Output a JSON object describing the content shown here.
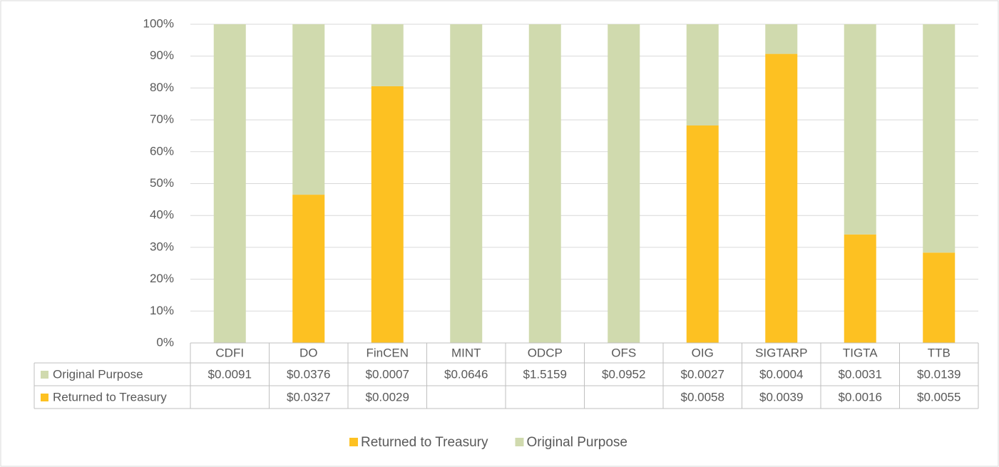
{
  "chart_data": {
    "type": "stacked_percent",
    "categories": [
      "CDFI",
      "DO",
      "FinCEN",
      "MINT",
      "ODCP",
      "OFS",
      "OIG",
      "SIGTARP",
      "TIGTA",
      "TTB"
    ],
    "series": [
      {
        "name": "Returned to Treasury",
        "color": "#fdc122",
        "values": [
          null,
          0.0327,
          0.0029,
          null,
          null,
          null,
          0.0058,
          0.0039,
          0.0016,
          0.0055
        ],
        "value_labels": [
          null,
          "$0.0327",
          "$0.0029",
          null,
          null,
          null,
          "$0.0058",
          "$0.0039",
          "$0.0016",
          "$0.0055"
        ]
      },
      {
        "name": "Original Purpose",
        "color": "#d0daae",
        "values": [
          0.0091,
          0.0376,
          0.0007,
          0.0646,
          1.5159,
          0.0952,
          0.0027,
          0.0004,
          0.0031,
          0.0139
        ],
        "value_labels": [
          "$0.0091",
          "$0.0376",
          "$0.0007",
          "$0.0646",
          "$1.5159",
          "$0.0952",
          "$0.0027",
          "$0.0004",
          "$0.0031",
          "$0.0139"
        ]
      }
    ],
    "ylim": [
      0,
      100
    ],
    "yticks": [
      {
        "value": 0,
        "label": "0%"
      },
      {
        "value": 10,
        "label": "10%"
      },
      {
        "value": 20,
        "label": "20%"
      },
      {
        "value": 30,
        "label": "30%"
      },
      {
        "value": 40,
        "label": "40%"
      },
      {
        "value": 50,
        "label": "50%"
      },
      {
        "value": 60,
        "label": "60%"
      },
      {
        "value": 70,
        "label": "70%"
      },
      {
        "value": 80,
        "label": "80%"
      },
      {
        "value": 90,
        "label": "90%"
      },
      {
        "value": 100,
        "label": "100%"
      }
    ],
    "grid": true,
    "legend": "bottom"
  }
}
